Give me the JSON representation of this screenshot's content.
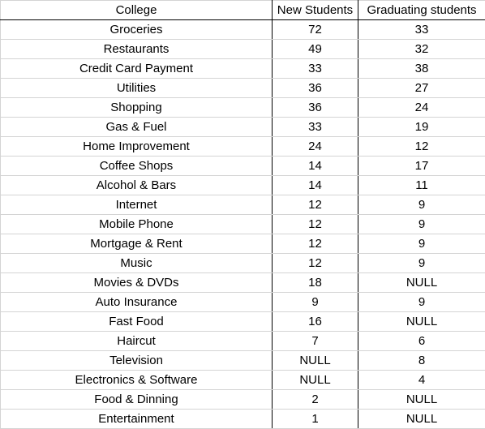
{
  "table": {
    "headers": [
      "College",
      "New Students",
      "Graduating students"
    ],
    "rows": [
      [
        "Groceries",
        "72",
        "33"
      ],
      [
        "Restaurants",
        "49",
        "32"
      ],
      [
        "Credit Card Payment",
        "33",
        "38"
      ],
      [
        "Utilities",
        "36",
        "27"
      ],
      [
        "Shopping",
        "36",
        "24"
      ],
      [
        "Gas & Fuel",
        "33",
        "19"
      ],
      [
        "Home Improvement",
        "24",
        "12"
      ],
      [
        "Coffee Shops",
        "14",
        "17"
      ],
      [
        "Alcohol & Bars",
        "14",
        "11"
      ],
      [
        "Internet",
        "12",
        "9"
      ],
      [
        "Mobile Phone",
        "12",
        "9"
      ],
      [
        "Mortgage & Rent",
        "12",
        "9"
      ],
      [
        "Music",
        "12",
        "9"
      ],
      [
        "Movies & DVDs",
        "18",
        "NULL"
      ],
      [
        "Auto Insurance",
        "9",
        "9"
      ],
      [
        "Fast Food",
        "16",
        "NULL"
      ],
      [
        "Haircut",
        "7",
        "6"
      ],
      [
        "Television",
        "NULL",
        "8"
      ],
      [
        "Electronics & Software",
        "NULL",
        "4"
      ],
      [
        "Food & Dinning",
        "2",
        "NULL"
      ],
      [
        "Entertainment",
        "1",
        "NULL"
      ]
    ]
  }
}
